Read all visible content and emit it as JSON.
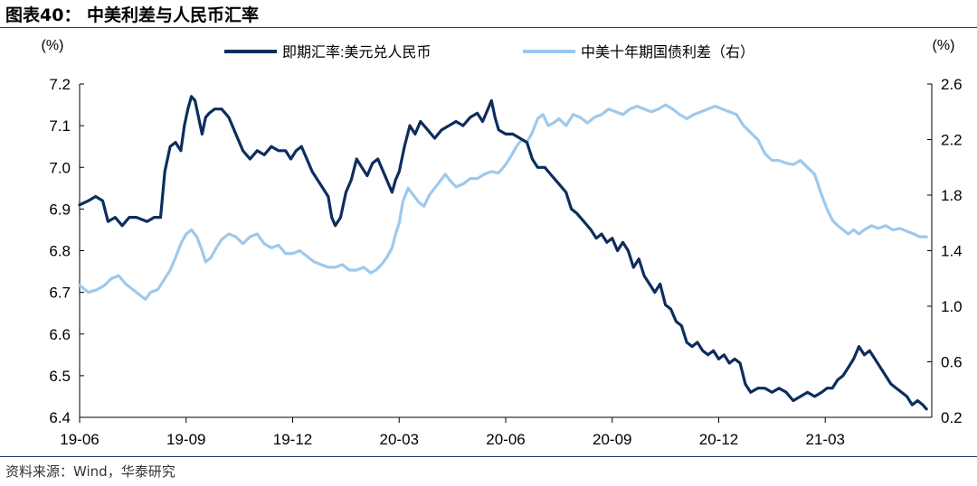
{
  "figure_title": "图表40：  中美利差与人民币汇率",
  "source_text": "资料来源：Wind，华泰研究",
  "chart_data": {
    "type": "line",
    "left_unit": "(%)",
    "right_unit": "(%)",
    "legend_position": "top-center",
    "grid": false,
    "x_start": "2019-06",
    "x_end": "2021-06",
    "x_ticks": [
      {
        "label": "19-06",
        "pos": 0
      },
      {
        "label": "19-09",
        "pos": 3
      },
      {
        "label": "19-12",
        "pos": 6
      },
      {
        "label": "20-03",
        "pos": 9
      },
      {
        "label": "20-06",
        "pos": 12
      },
      {
        "label": "20-09",
        "pos": 15
      },
      {
        "label": "20-12",
        "pos": 18
      },
      {
        "label": "21-03",
        "pos": 21
      }
    ],
    "y_left": {
      "min": 6.4,
      "max": 7.2,
      "ticks": [
        "6.4",
        "6.5",
        "6.6",
        "6.7",
        "6.8",
        "6.9",
        "7.0",
        "7.1",
        "7.2"
      ]
    },
    "y_right": {
      "min": 0.2,
      "max": 2.6,
      "ticks": [
        "0.2",
        "0.6",
        "1.0",
        "1.4",
        "1.8",
        "2.2",
        "2.6"
      ]
    },
    "series": [
      {
        "name": "即期汇率:美元兑人民币",
        "axis": "left",
        "color": "#0d2d5e",
        "points": [
          [
            0.0,
            6.91
          ],
          [
            0.25,
            6.92
          ],
          [
            0.45,
            6.93
          ],
          [
            0.65,
            6.92
          ],
          [
            0.8,
            6.87
          ],
          [
            1.0,
            6.88
          ],
          [
            1.2,
            6.86
          ],
          [
            1.4,
            6.88
          ],
          [
            1.6,
            6.88
          ],
          [
            1.9,
            6.87
          ],
          [
            2.1,
            6.88
          ],
          [
            2.28,
            6.88
          ],
          [
            2.4,
            6.99
          ],
          [
            2.55,
            7.05
          ],
          [
            2.7,
            7.06
          ],
          [
            2.85,
            7.04
          ],
          [
            2.95,
            7.1
          ],
          [
            3.05,
            7.14
          ],
          [
            3.15,
            7.17
          ],
          [
            3.25,
            7.16
          ],
          [
            3.35,
            7.12
          ],
          [
            3.45,
            7.08
          ],
          [
            3.55,
            7.12
          ],
          [
            3.65,
            7.13
          ],
          [
            3.8,
            7.14
          ],
          [
            4.0,
            7.14
          ],
          [
            4.2,
            7.12
          ],
          [
            4.4,
            7.08
          ],
          [
            4.6,
            7.04
          ],
          [
            4.8,
            7.02
          ],
          [
            5.0,
            7.04
          ],
          [
            5.2,
            7.03
          ],
          [
            5.4,
            7.05
          ],
          [
            5.6,
            7.04
          ],
          [
            5.8,
            7.04
          ],
          [
            5.95,
            7.02
          ],
          [
            6.1,
            7.04
          ],
          [
            6.25,
            7.05
          ],
          [
            6.4,
            7.02
          ],
          [
            6.55,
            6.99
          ],
          [
            6.7,
            6.97
          ],
          [
            6.85,
            6.95
          ],
          [
            7.0,
            6.93
          ],
          [
            7.1,
            6.88
          ],
          [
            7.2,
            6.86
          ],
          [
            7.35,
            6.88
          ],
          [
            7.5,
            6.94
          ],
          [
            7.65,
            6.97
          ],
          [
            7.8,
            7.02
          ],
          [
            7.95,
            7.0
          ],
          [
            8.1,
            6.98
          ],
          [
            8.25,
            7.01
          ],
          [
            8.4,
            7.02
          ],
          [
            8.55,
            6.99
          ],
          [
            8.7,
            6.96
          ],
          [
            8.8,
            6.94
          ],
          [
            8.9,
            6.97
          ],
          [
            9.0,
            6.99
          ],
          [
            9.15,
            7.05
          ],
          [
            9.3,
            7.1
          ],
          [
            9.45,
            7.08
          ],
          [
            9.6,
            7.11
          ],
          [
            9.8,
            7.09
          ],
          [
            10.0,
            7.07
          ],
          [
            10.2,
            7.09
          ],
          [
            10.4,
            7.1
          ],
          [
            10.6,
            7.11
          ],
          [
            10.8,
            7.1
          ],
          [
            11.0,
            7.12
          ],
          [
            11.2,
            7.13
          ],
          [
            11.35,
            7.11
          ],
          [
            11.5,
            7.14
          ],
          [
            11.6,
            7.16
          ],
          [
            11.7,
            7.12
          ],
          [
            11.8,
            7.09
          ],
          [
            12.0,
            7.08
          ],
          [
            12.2,
            7.08
          ],
          [
            12.4,
            7.07
          ],
          [
            12.6,
            7.06
          ],
          [
            12.75,
            7.02
          ],
          [
            12.9,
            7.0
          ],
          [
            13.1,
            7.0
          ],
          [
            13.3,
            6.98
          ],
          [
            13.5,
            6.96
          ],
          [
            13.7,
            6.94
          ],
          [
            13.85,
            6.9
          ],
          [
            14.0,
            6.89
          ],
          [
            14.2,
            6.87
          ],
          [
            14.4,
            6.85
          ],
          [
            14.55,
            6.83
          ],
          [
            14.7,
            6.84
          ],
          [
            14.85,
            6.82
          ],
          [
            15.0,
            6.83
          ],
          [
            15.15,
            6.8
          ],
          [
            15.3,
            6.82
          ],
          [
            15.45,
            6.8
          ],
          [
            15.6,
            6.76
          ],
          [
            15.75,
            6.78
          ],
          [
            15.9,
            6.74
          ],
          [
            16.05,
            6.72
          ],
          [
            16.2,
            6.7
          ],
          [
            16.35,
            6.72
          ],
          [
            16.5,
            6.67
          ],
          [
            16.65,
            6.66
          ],
          [
            16.8,
            6.63
          ],
          [
            16.95,
            6.62
          ],
          [
            17.1,
            6.58
          ],
          [
            17.25,
            6.57
          ],
          [
            17.4,
            6.58
          ],
          [
            17.55,
            6.56
          ],
          [
            17.7,
            6.55
          ],
          [
            17.85,
            6.56
          ],
          [
            18.0,
            6.54
          ],
          [
            18.15,
            6.55
          ],
          [
            18.3,
            6.53
          ],
          [
            18.45,
            6.54
          ],
          [
            18.6,
            6.53
          ],
          [
            18.75,
            6.48
          ],
          [
            18.9,
            6.46
          ],
          [
            19.1,
            6.47
          ],
          [
            19.3,
            6.47
          ],
          [
            19.5,
            6.46
          ],
          [
            19.7,
            6.47
          ],
          [
            19.9,
            6.46
          ],
          [
            20.1,
            6.44
          ],
          [
            20.3,
            6.45
          ],
          [
            20.5,
            6.46
          ],
          [
            20.7,
            6.45
          ],
          [
            20.9,
            6.46
          ],
          [
            21.05,
            6.47
          ],
          [
            21.2,
            6.47
          ],
          [
            21.35,
            6.49
          ],
          [
            21.5,
            6.5
          ],
          [
            21.65,
            6.52
          ],
          [
            21.8,
            6.54
          ],
          [
            21.95,
            6.57
          ],
          [
            22.1,
            6.55
          ],
          [
            22.25,
            6.56
          ],
          [
            22.4,
            6.54
          ],
          [
            22.55,
            6.52
          ],
          [
            22.7,
            6.5
          ],
          [
            22.85,
            6.48
          ],
          [
            23.0,
            6.47
          ],
          [
            23.15,
            6.46
          ],
          [
            23.3,
            6.45
          ],
          [
            23.45,
            6.43
          ],
          [
            23.6,
            6.44
          ],
          [
            23.75,
            6.43
          ],
          [
            23.85,
            6.42
          ]
        ]
      },
      {
        "name": "中美十年期国债利差（右）",
        "axis": "right",
        "color": "#9ec9ec",
        "points": [
          [
            0.0,
            1.15
          ],
          [
            0.25,
            1.1
          ],
          [
            0.5,
            1.12
          ],
          [
            0.7,
            1.15
          ],
          [
            0.9,
            1.2
          ],
          [
            1.1,
            1.22
          ],
          [
            1.3,
            1.16
          ],
          [
            1.5,
            1.12
          ],
          [
            1.7,
            1.08
          ],
          [
            1.85,
            1.05
          ],
          [
            2.0,
            1.1
          ],
          [
            2.2,
            1.12
          ],
          [
            2.4,
            1.2
          ],
          [
            2.55,
            1.26
          ],
          [
            2.7,
            1.35
          ],
          [
            2.85,
            1.45
          ],
          [
            3.0,
            1.52
          ],
          [
            3.15,
            1.55
          ],
          [
            3.3,
            1.5
          ],
          [
            3.45,
            1.4
          ],
          [
            3.55,
            1.32
          ],
          [
            3.7,
            1.35
          ],
          [
            3.85,
            1.42
          ],
          [
            4.0,
            1.48
          ],
          [
            4.2,
            1.52
          ],
          [
            4.4,
            1.5
          ],
          [
            4.6,
            1.45
          ],
          [
            4.8,
            1.5
          ],
          [
            5.0,
            1.52
          ],
          [
            5.2,
            1.45
          ],
          [
            5.4,
            1.42
          ],
          [
            5.6,
            1.44
          ],
          [
            5.8,
            1.38
          ],
          [
            6.0,
            1.38
          ],
          [
            6.2,
            1.4
          ],
          [
            6.4,
            1.36
          ],
          [
            6.6,
            1.32
          ],
          [
            6.8,
            1.3
          ],
          [
            7.0,
            1.28
          ],
          [
            7.2,
            1.28
          ],
          [
            7.4,
            1.3
          ],
          [
            7.6,
            1.26
          ],
          [
            7.8,
            1.26
          ],
          [
            8.0,
            1.28
          ],
          [
            8.2,
            1.24
          ],
          [
            8.35,
            1.26
          ],
          [
            8.5,
            1.3
          ],
          [
            8.65,
            1.35
          ],
          [
            8.8,
            1.42
          ],
          [
            8.9,
            1.52
          ],
          [
            9.0,
            1.6
          ],
          [
            9.1,
            1.75
          ],
          [
            9.25,
            1.85
          ],
          [
            9.4,
            1.8
          ],
          [
            9.55,
            1.75
          ],
          [
            9.7,
            1.72
          ],
          [
            9.85,
            1.8
          ],
          [
            10.0,
            1.85
          ],
          [
            10.15,
            1.9
          ],
          [
            10.3,
            1.95
          ],
          [
            10.45,
            1.9
          ],
          [
            10.6,
            1.86
          ],
          [
            10.8,
            1.88
          ],
          [
            11.0,
            1.92
          ],
          [
            11.2,
            1.92
          ],
          [
            11.4,
            1.95
          ],
          [
            11.6,
            1.97
          ],
          [
            11.8,
            1.96
          ],
          [
            12.0,
            2.02
          ],
          [
            12.15,
            2.08
          ],
          [
            12.3,
            2.15
          ],
          [
            12.45,
            2.2
          ],
          [
            12.6,
            2.18
          ],
          [
            12.75,
            2.25
          ],
          [
            12.9,
            2.35
          ],
          [
            13.05,
            2.38
          ],
          [
            13.2,
            2.3
          ],
          [
            13.35,
            2.32
          ],
          [
            13.5,
            2.35
          ],
          [
            13.7,
            2.3
          ],
          [
            13.9,
            2.38
          ],
          [
            14.1,
            2.36
          ],
          [
            14.3,
            2.32
          ],
          [
            14.5,
            2.36
          ],
          [
            14.7,
            2.38
          ],
          [
            14.9,
            2.42
          ],
          [
            15.1,
            2.4
          ],
          [
            15.3,
            2.38
          ],
          [
            15.5,
            2.42
          ],
          [
            15.7,
            2.44
          ],
          [
            15.9,
            2.42
          ],
          [
            16.1,
            2.4
          ],
          [
            16.3,
            2.42
          ],
          [
            16.5,
            2.45
          ],
          [
            16.7,
            2.42
          ],
          [
            16.9,
            2.38
          ],
          [
            17.1,
            2.35
          ],
          [
            17.3,
            2.38
          ],
          [
            17.5,
            2.4
          ],
          [
            17.7,
            2.42
          ],
          [
            17.9,
            2.44
          ],
          [
            18.1,
            2.42
          ],
          [
            18.3,
            2.4
          ],
          [
            18.5,
            2.38
          ],
          [
            18.7,
            2.3
          ],
          [
            18.9,
            2.25
          ],
          [
            19.1,
            2.2
          ],
          [
            19.3,
            2.1
          ],
          [
            19.5,
            2.05
          ],
          [
            19.7,
            2.05
          ],
          [
            19.9,
            2.03
          ],
          [
            20.1,
            2.02
          ],
          [
            20.3,
            2.05
          ],
          [
            20.5,
            2.0
          ],
          [
            20.7,
            1.95
          ],
          [
            20.9,
            1.8
          ],
          [
            21.05,
            1.7
          ],
          [
            21.2,
            1.62
          ],
          [
            21.35,
            1.58
          ],
          [
            21.5,
            1.55
          ],
          [
            21.65,
            1.52
          ],
          [
            21.8,
            1.55
          ],
          [
            21.95,
            1.52
          ],
          [
            22.1,
            1.55
          ],
          [
            22.3,
            1.58
          ],
          [
            22.5,
            1.56
          ],
          [
            22.7,
            1.58
          ],
          [
            22.9,
            1.55
          ],
          [
            23.1,
            1.56
          ],
          [
            23.3,
            1.54
          ],
          [
            23.5,
            1.52
          ],
          [
            23.65,
            1.5
          ],
          [
            23.85,
            1.5
          ]
        ]
      }
    ]
  }
}
